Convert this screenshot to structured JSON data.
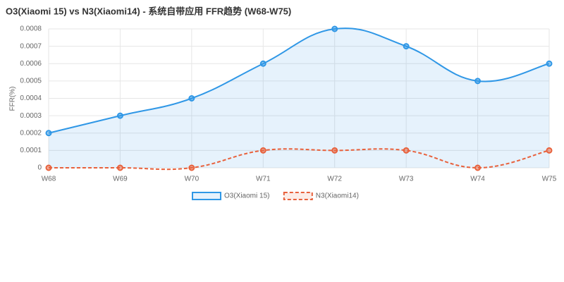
{
  "chart_data": {
    "type": "line",
    "title": "O3(Xiaomi 15) vs N3(Xiaomi14) - 系统自带应用 FFR趋势 (W68-W75)",
    "y_label": "FFR(%)",
    "categories": [
      "W68",
      "W69",
      "W70",
      "W71",
      "W72",
      "W73",
      "W74",
      "W75"
    ],
    "series": [
      {
        "name": "O3(Xiaomi 15)",
        "color": "#2f97e6",
        "dashed": false,
        "fill": true,
        "values": [
          0.0002,
          0.0003,
          0.0004,
          0.0006,
          0.0008,
          0.0007,
          0.0005,
          0.0006
        ]
      },
      {
        "name": "N3(Xiaomi14)",
        "color": "#e8613c",
        "dashed": true,
        "fill": false,
        "values": [
          0,
          0,
          0,
          0.0001,
          0.0001,
          0.0001,
          0,
          0.0001
        ]
      }
    ],
    "ylim": [
      0,
      0.0008
    ],
    "yticks": [
      0,
      0.0001,
      0.0002,
      0.0003,
      0.0004,
      0.0005,
      0.0006,
      0.0007,
      0.0008
    ],
    "grid": true,
    "legend": "bottom"
  }
}
